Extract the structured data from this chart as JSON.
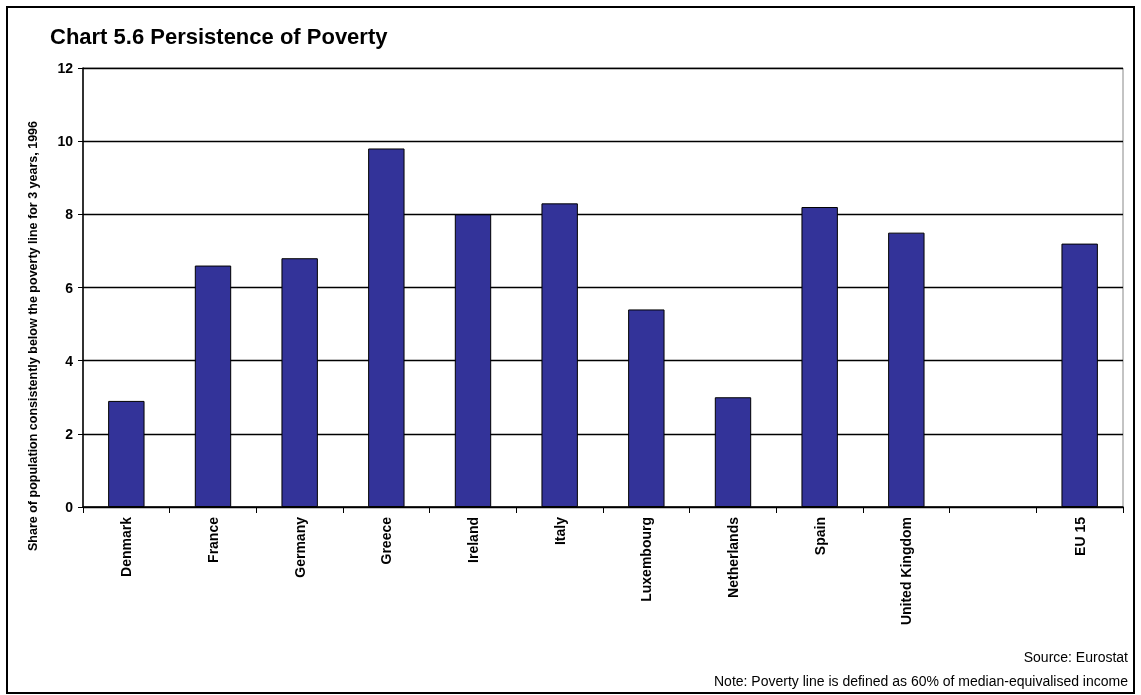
{
  "chart_data": {
    "type": "bar",
    "title": "Chart 5.6 Persistence of Poverty",
    "ylabel": "Share of population consistently below the poverty line for 3 years, 1996",
    "categories": [
      "Denmark",
      "France",
      "Germany",
      "Greece",
      "Ireland",
      "Italy",
      "Luxembourg",
      "Netherlands",
      "Spain",
      "United Kingdom",
      null,
      "EU 15"
    ],
    "values": [
      2.9,
      6.6,
      6.8,
      9.8,
      8.0,
      8.3,
      5.4,
      3.0,
      8.2,
      7.5,
      null,
      7.2
    ],
    "color": "#333399",
    "ylim": [
      0,
      12
    ],
    "yticks": [
      0,
      2,
      4,
      6,
      8,
      10,
      12
    ],
    "grid": "y",
    "annotations": [
      "Source: Eurostat",
      "Note: Poverty line is defined as 60% of median-equivalised income"
    ]
  }
}
